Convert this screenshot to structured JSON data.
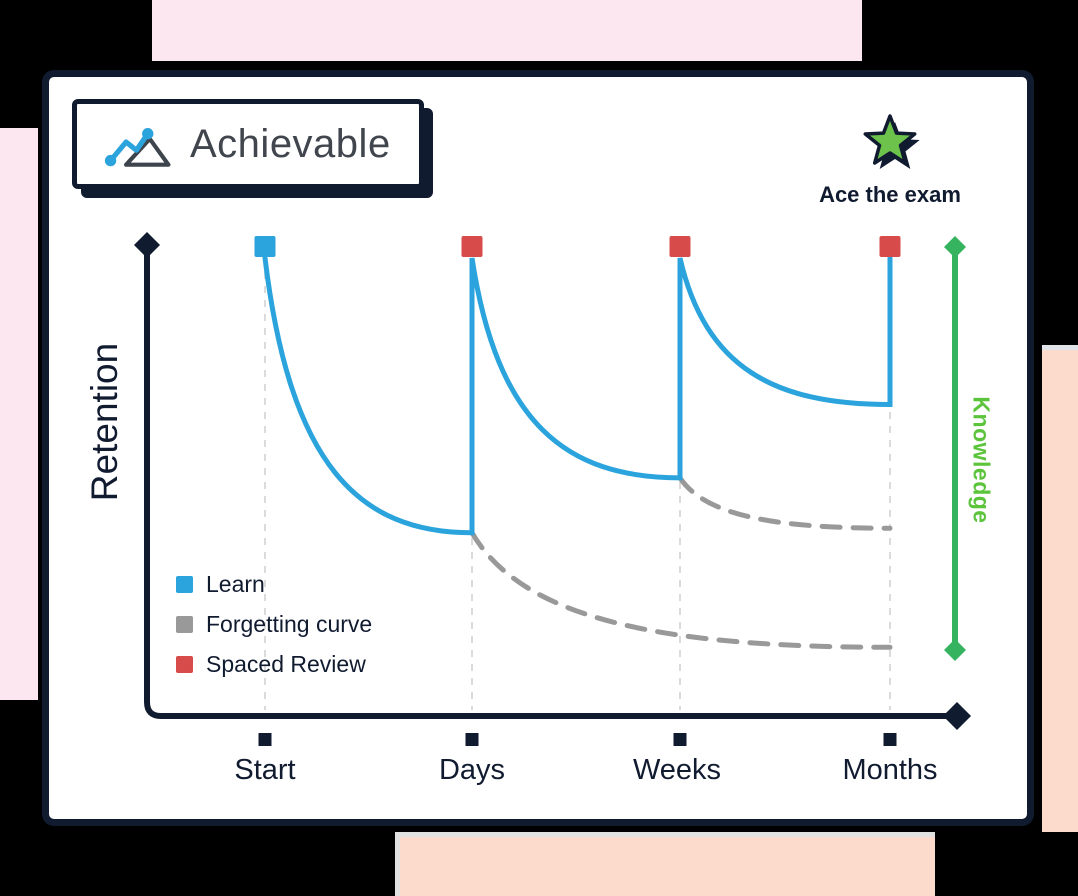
{
  "brand": {
    "name": "Achievable"
  },
  "tagline": {
    "text": "Ace the exam"
  },
  "colors": {
    "ink": "#111B30",
    "learn_blue": "#2BA3DC",
    "review_red": "#D84B4B",
    "forgetting_gray": "#999999",
    "knowledge_green": "#36B35F",
    "knowledge_text_green": "#5BC43B",
    "star_green": "#6CC24B",
    "guide_gray": "#DBDBDB",
    "decor_pink": "#FCE7F0",
    "decor_peach": "#FCDACC"
  },
  "chart_data": {
    "type": "line",
    "categories": [
      "Start",
      "Days",
      "Weeks",
      "Months"
    ],
    "ylabel": "Retention",
    "right_axis_label": "Knowledge",
    "ylim": [
      0,
      100
    ],
    "grid": false,
    "legend_position": "inside lower-left",
    "legend": [
      {
        "label": "Learn",
        "color": "#2BA3DC"
      },
      {
        "label": "Forgetting curve",
        "color": "#999999"
      },
      {
        "label": "Spaced Review",
        "color": "#D84B4B"
      }
    ],
    "series": [
      {
        "name": "Learn",
        "color": "#2BA3DC",
        "line_style": "solid",
        "segments": [
          {
            "kind": "decay",
            "from": {
              "x": "Start",
              "y": 100
            },
            "to": {
              "x": "Days",
              "y": 40
            }
          },
          {
            "kind": "jump",
            "x": "Days",
            "to_y": 100
          },
          {
            "kind": "decay",
            "from": {
              "x": "Days",
              "y": 100
            },
            "to": {
              "x": "Weeks",
              "y": 52
            }
          },
          {
            "kind": "jump",
            "x": "Weeks",
            "to_y": 100
          },
          {
            "kind": "decay",
            "from": {
              "x": "Weeks",
              "y": 100
            },
            "to": {
              "x": "Months",
              "y": 68
            }
          },
          {
            "kind": "jump",
            "x": "Months",
            "to_y": 100
          }
        ]
      },
      {
        "name": "Forgetting curve",
        "color": "#999999",
        "line_style": "dashed",
        "segments": [
          {
            "kind": "decay",
            "from": {
              "x": "Days",
              "y": 40
            },
            "to": {
              "x": "Months",
              "y": 15
            }
          },
          {
            "kind": "decay",
            "from": {
              "x": "Weeks",
              "y": 52
            },
            "to": {
              "x": "Months",
              "y": 41
            }
          }
        ]
      }
    ],
    "markers": [
      {
        "x": "Start",
        "y": 100,
        "color": "#2BA3DC",
        "meaning": "Learn"
      },
      {
        "x": "Days",
        "y": 100,
        "color": "#D84B4B",
        "meaning": "Spaced Review"
      },
      {
        "x": "Weeks",
        "y": 100,
        "color": "#D84B4B",
        "meaning": "Spaced Review"
      },
      {
        "x": "Months",
        "y": 100,
        "color": "#D84B4B",
        "meaning": "Spaced Review"
      }
    ],
    "guides": {
      "vertical_dashed_at": [
        "Start",
        "Days",
        "Weeks",
        "Months"
      ]
    }
  }
}
